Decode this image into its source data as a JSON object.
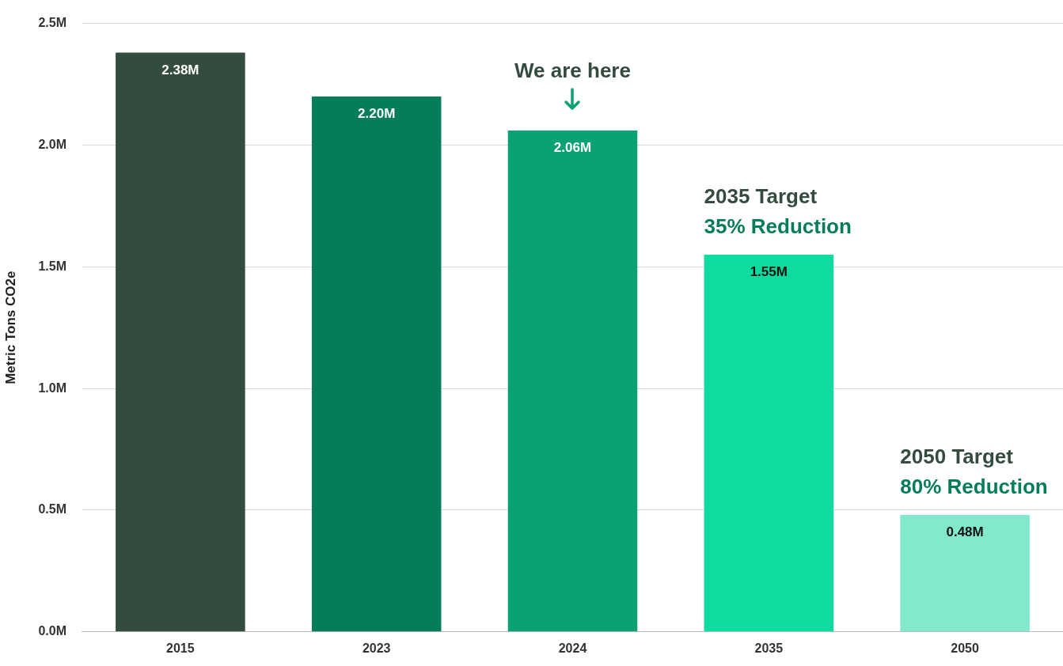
{
  "chart_data": {
    "type": "bar",
    "ylabel": "Metric Tons CO2e",
    "categories": [
      "2015",
      "2023",
      "2024",
      "2035",
      "2050"
    ],
    "values": [
      2.38,
      2.2,
      2.06,
      1.55,
      0.48
    ],
    "colors": [
      "#344c3f",
      "#067d5a",
      "#0ba273",
      "#0edb9f",
      "#82e9cc"
    ],
    "value_labels": [
      "2.38M",
      "2.20M",
      "2.06M",
      "1.55M",
      "0.48M"
    ],
    "ylim": [
      0,
      2.5
    ],
    "yticks": [
      {
        "value": 0,
        "label": "0.0M"
      },
      {
        "value": 0.5,
        "label": "0.5M"
      },
      {
        "value": 1,
        "label": "1.0M"
      },
      {
        "value": 1.5,
        "label": "1.5M"
      },
      {
        "value": 2,
        "label": "2.0M"
      },
      {
        "value": 2.5,
        "label": "2.5M"
      }
    ],
    "grid": "y",
    "legend": false,
    "annotations": [
      "We are here",
      "2035 Target",
      "35% Reduction",
      "2050 Target",
      "80% Reduction"
    ]
  }
}
